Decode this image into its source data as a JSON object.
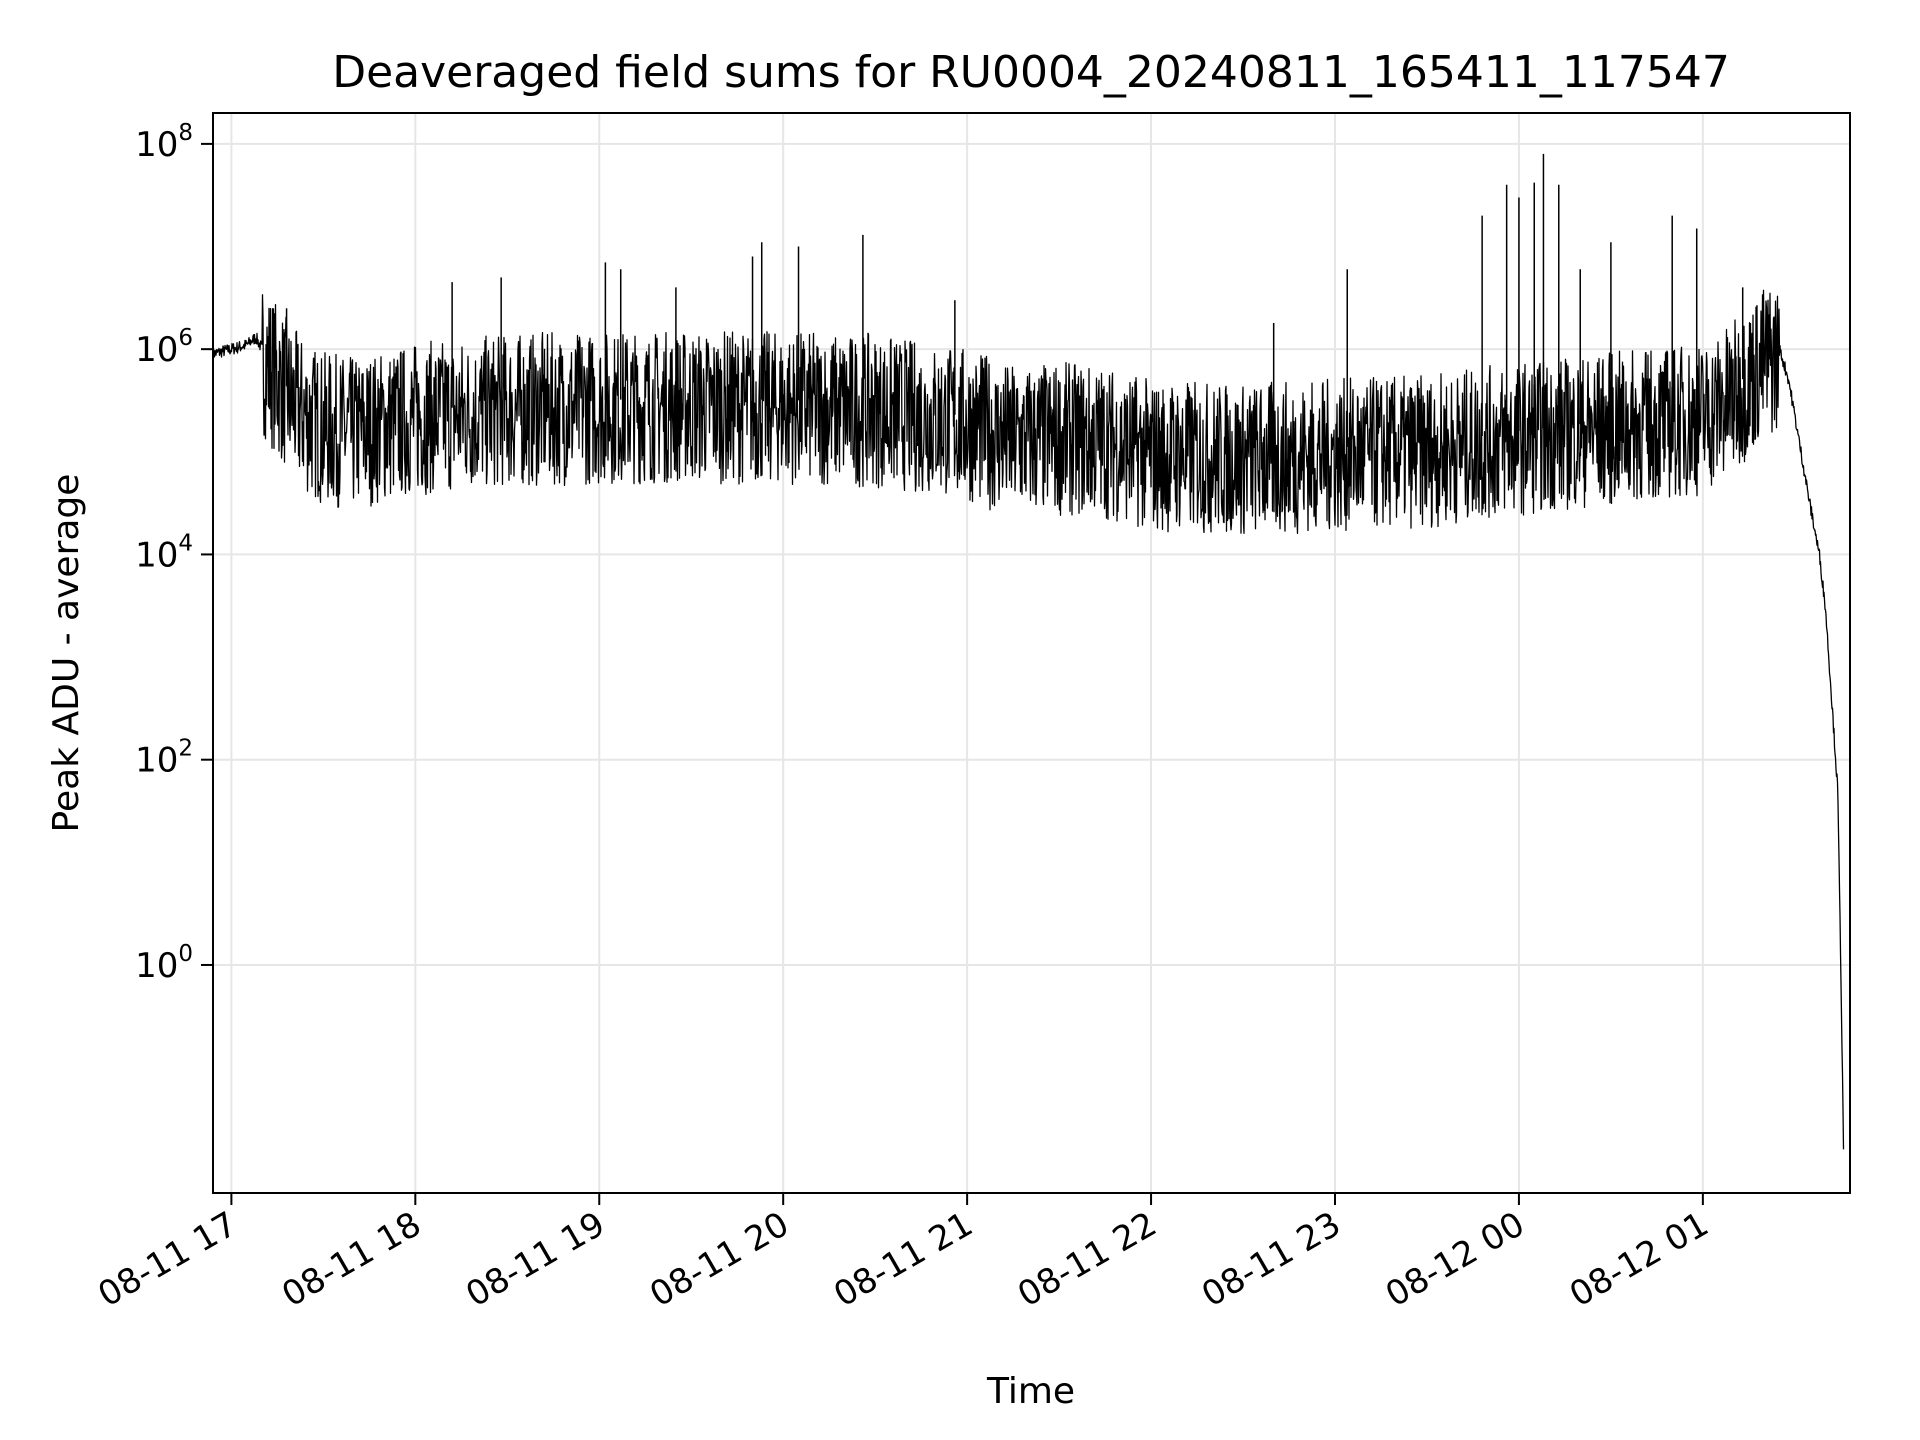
{
  "chart_data": {
    "type": "line",
    "title": "Deaveraged field sums for RU0004_20240811_165411_117547",
    "xlabel": "Time",
    "ylabel": "Peak ADU - average",
    "yscale": "log",
    "grid": true,
    "legend": "none",
    "colors": {
      "line": "#000000",
      "grid": "#e6e6e6",
      "axes": "#000000",
      "background": "#ffffff"
    },
    "xlim": [
      "2024-08-11 16:54",
      "2024-08-12 01:48"
    ],
    "ylim": [
      0.006,
      200000000
    ],
    "x_ticks": [
      {
        "t": "2024-08-11 17:00",
        "label": "08-11 17"
      },
      {
        "t": "2024-08-11 18:00",
        "label": "08-11 18"
      },
      {
        "t": "2024-08-11 19:00",
        "label": "08-11 19"
      },
      {
        "t": "2024-08-11 20:00",
        "label": "08-11 20"
      },
      {
        "t": "2024-08-11 21:00",
        "label": "08-11 21"
      },
      {
        "t": "2024-08-11 22:00",
        "label": "08-11 22"
      },
      {
        "t": "2024-08-11 23:00",
        "label": "08-11 23"
      },
      {
        "t": "2024-08-12 00:00",
        "label": "08-12 00"
      },
      {
        "t": "2024-08-12 01:00",
        "label": "08-12 01"
      }
    ],
    "y_ticks": [
      {
        "value": 1,
        "base": "10",
        "exp": "0"
      },
      {
        "value": 100,
        "base": "10",
        "exp": "2"
      },
      {
        "value": 10000,
        "base": "10",
        "exp": "4"
      },
      {
        "value": 1000000,
        "base": "10",
        "exp": "6"
      },
      {
        "value": 100000000,
        "base": "10",
        "exp": "8"
      }
    ],
    "series": [
      {
        "points": [
          [
            "2024-08-11 16:54",
            900000
          ],
          [
            "2024-08-11 16:57",
            950000
          ],
          [
            "2024-08-11 17:00",
            1000000
          ],
          [
            "2024-08-11 17:05",
            1100000
          ],
          [
            "2024-08-11 17:08",
            1300000
          ],
          [
            "2024-08-11 17:10",
            1000000
          ],
          [
            "2024-08-11 17:15",
            600000
          ],
          [
            "2024-08-11 17:20",
            350000
          ],
          [
            "2024-08-11 17:25",
            250000
          ],
          [
            "2024-08-11 17:30",
            200000
          ],
          [
            "2024-08-11 17:40",
            180000
          ],
          [
            "2024-08-11 18:00",
            250000
          ],
          [
            "2024-08-11 18:30",
            300000
          ],
          [
            "2024-08-11 19:00",
            320000
          ],
          [
            "2024-08-11 19:30",
            330000
          ],
          [
            "2024-08-11 20:00",
            320000
          ],
          [
            "2024-08-11 20:30",
            300000
          ],
          [
            "2024-08-11 21:00",
            220000
          ],
          [
            "2024-08-11 21:15",
            150000
          ],
          [
            "2024-08-11 21:30",
            160000
          ],
          [
            "2024-08-11 21:45",
            150000
          ],
          [
            "2024-08-11 22:00",
            110000
          ],
          [
            "2024-08-11 22:30",
            100000
          ],
          [
            "2024-08-11 23:00",
            110000
          ],
          [
            "2024-08-11 23:30",
            120000
          ],
          [
            "2024-08-12 00:00",
            160000
          ],
          [
            "2024-08-12 00:30",
            200000
          ],
          [
            "2024-08-12 01:00",
            250000
          ],
          [
            "2024-08-12 01:10",
            400000
          ],
          [
            "2024-08-12 01:20",
            900000
          ],
          [
            "2024-08-12 01:25",
            1000000
          ],
          [
            "2024-08-12 01:28",
            500000
          ],
          [
            "2024-08-12 01:32",
            100000
          ],
          [
            "2024-08-12 01:35",
            30000
          ],
          [
            "2024-08-12 01:38",
            10000
          ],
          [
            "2024-08-12 01:40",
            3000
          ],
          [
            "2024-08-12 01:42",
            400
          ],
          [
            "2024-08-12 01:44",
            50
          ],
          [
            "2024-08-12 01:45",
            1
          ],
          [
            "2024-08-12 01:46",
            0.01
          ]
        ],
        "spikes": [
          [
            "2024-08-11 17:18",
            2500000
          ],
          [
            "2024-08-11 18:12",
            4500000
          ],
          [
            "2024-08-11 18:28",
            5000000
          ],
          [
            "2024-08-11 19:02",
            7000000
          ],
          [
            "2024-08-11 19:07",
            6000000
          ],
          [
            "2024-08-11 19:25",
            4000000
          ],
          [
            "2024-08-11 19:50",
            8000000
          ],
          [
            "2024-08-11 19:53",
            11000000
          ],
          [
            "2024-08-11 20:05",
            10000000
          ],
          [
            "2024-08-11 20:26",
            13000000
          ],
          [
            "2024-08-11 20:56",
            3000000
          ],
          [
            "2024-08-11 22:40",
            1800000
          ],
          [
            "2024-08-11 23:04",
            6000000
          ],
          [
            "2024-08-11 23:48",
            20000000
          ],
          [
            "2024-08-11 23:56",
            40000000
          ],
          [
            "2024-08-12 00:00",
            30000000
          ],
          [
            "2024-08-12 00:05",
            42000000
          ],
          [
            "2024-08-12 00:08",
            80000000
          ],
          [
            "2024-08-12 00:13",
            40000000
          ],
          [
            "2024-08-12 00:20",
            6000000
          ],
          [
            "2024-08-12 00:30",
            11000000
          ],
          [
            "2024-08-12 00:50",
            20000000
          ],
          [
            "2024-08-12 00:58",
            15000000
          ],
          [
            "2024-08-12 01:13",
            4000000
          ]
        ]
      }
    ]
  }
}
